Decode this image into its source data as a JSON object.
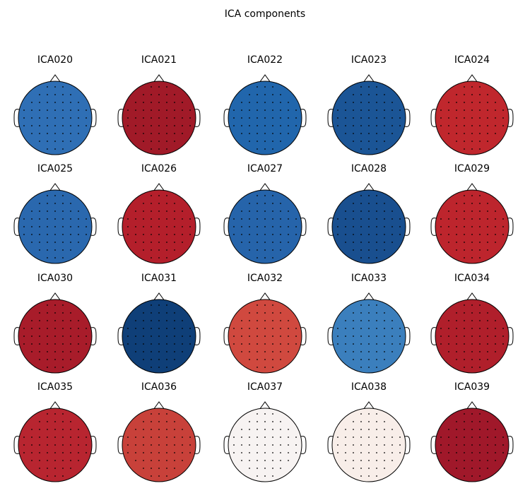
{
  "title": "ICA components",
  "components": [
    {
      "name": "ICA020",
      "color": "#2f6fb5"
    },
    {
      "name": "ICA021",
      "color": "#a11a28"
    },
    {
      "name": "ICA022",
      "color": "#2166ac"
    },
    {
      "name": "ICA023",
      "color": "#1b5596"
    },
    {
      "name": "ICA024",
      "color": "#c0272d"
    },
    {
      "name": "ICA025",
      "color": "#2a68ae"
    },
    {
      "name": "ICA026",
      "color": "#b41f2b"
    },
    {
      "name": "ICA027",
      "color": "#2664aa"
    },
    {
      "name": "ICA028",
      "color": "#194f8f"
    },
    {
      "name": "ICA029",
      "color": "#bd252d"
    },
    {
      "name": "ICA030",
      "color": "#a81c2a"
    },
    {
      "name": "ICA031",
      "color": "#0f3f78"
    },
    {
      "name": "ICA032",
      "color": "#d0493f"
    },
    {
      "name": "ICA033",
      "color": "#3b7fbd"
    },
    {
      "name": "ICA034",
      "color": "#b01f2b"
    },
    {
      "name": "ICA035",
      "color": "#b82530"
    },
    {
      "name": "ICA036",
      "color": "#c8413a"
    },
    {
      "name": "ICA037",
      "color": "#f7f3f2"
    },
    {
      "name": "ICA038",
      "color": "#f8eee9"
    },
    {
      "name": "ICA039",
      "color": "#a0182a"
    }
  ]
}
